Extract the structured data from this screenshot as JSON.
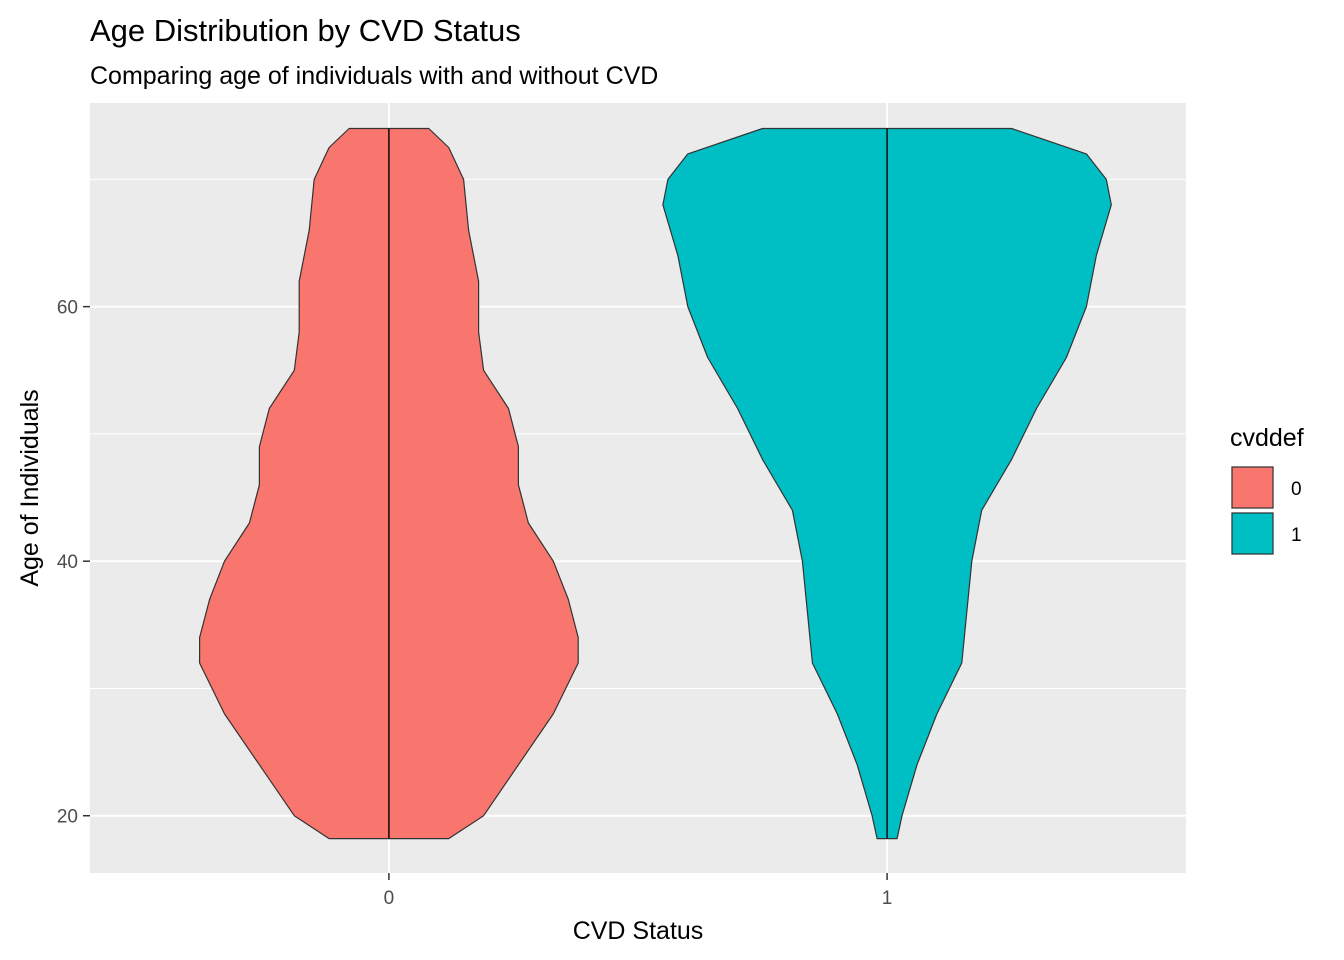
{
  "chart_data": {
    "type": "violin",
    "title": "Age Distribution by CVD Status",
    "subtitle": "Comparing age of individuals with and without CVD",
    "xlabel": "CVD Status",
    "ylabel": "Age of Individuals",
    "categories": [
      "0",
      "1"
    ],
    "ylim": [
      15.5,
      76.0
    ],
    "yticks": [
      20,
      40,
      60
    ],
    "grid": true,
    "legend": {
      "title": "cvddef",
      "position": "right",
      "entries": [
        {
          "label": "0",
          "color": "#F8766D"
        },
        {
          "label": "1",
          "color": "#00BFC4"
        }
      ]
    },
    "series": [
      {
        "category": "0",
        "color": "#F8766D",
        "profile": [
          {
            "age": 18.2,
            "half_width": 0.12
          },
          {
            "age": 20.0,
            "half_width": 0.19
          },
          {
            "age": 24.0,
            "half_width": 0.26
          },
          {
            "age": 28.0,
            "half_width": 0.33
          },
          {
            "age": 32.0,
            "half_width": 0.38
          },
          {
            "age": 34.0,
            "half_width": 0.38
          },
          {
            "age": 37.0,
            "half_width": 0.36
          },
          {
            "age": 40.0,
            "half_width": 0.33
          },
          {
            "age": 43.0,
            "half_width": 0.28
          },
          {
            "age": 46.0,
            "half_width": 0.26
          },
          {
            "age": 49.0,
            "half_width": 0.26
          },
          {
            "age": 52.0,
            "half_width": 0.24
          },
          {
            "age": 55.0,
            "half_width": 0.19
          },
          {
            "age": 58.0,
            "half_width": 0.18
          },
          {
            "age": 62.0,
            "half_width": 0.18
          },
          {
            "age": 66.0,
            "half_width": 0.16
          },
          {
            "age": 70.0,
            "half_width": 0.15
          },
          {
            "age": 72.5,
            "half_width": 0.12
          },
          {
            "age": 74.0,
            "half_width": 0.08
          }
        ]
      },
      {
        "category": "1",
        "color": "#00BFC4",
        "profile": [
          {
            "age": 18.2,
            "half_width": 0.02
          },
          {
            "age": 20.0,
            "half_width": 0.03
          },
          {
            "age": 24.0,
            "half_width": 0.06
          },
          {
            "age": 28.0,
            "half_width": 0.1
          },
          {
            "age": 32.0,
            "half_width": 0.15
          },
          {
            "age": 36.0,
            "half_width": 0.16
          },
          {
            "age": 40.0,
            "half_width": 0.17
          },
          {
            "age": 44.0,
            "half_width": 0.19
          },
          {
            "age": 48.0,
            "half_width": 0.25
          },
          {
            "age": 52.0,
            "half_width": 0.3
          },
          {
            "age": 56.0,
            "half_width": 0.36
          },
          {
            "age": 60.0,
            "half_width": 0.4
          },
          {
            "age": 64.0,
            "half_width": 0.42
          },
          {
            "age": 68.0,
            "half_width": 0.45
          },
          {
            "age": 70.0,
            "half_width": 0.44
          },
          {
            "age": 72.0,
            "half_width": 0.4
          },
          {
            "age": 74.0,
            "half_width": 0.25
          }
        ]
      }
    ]
  }
}
